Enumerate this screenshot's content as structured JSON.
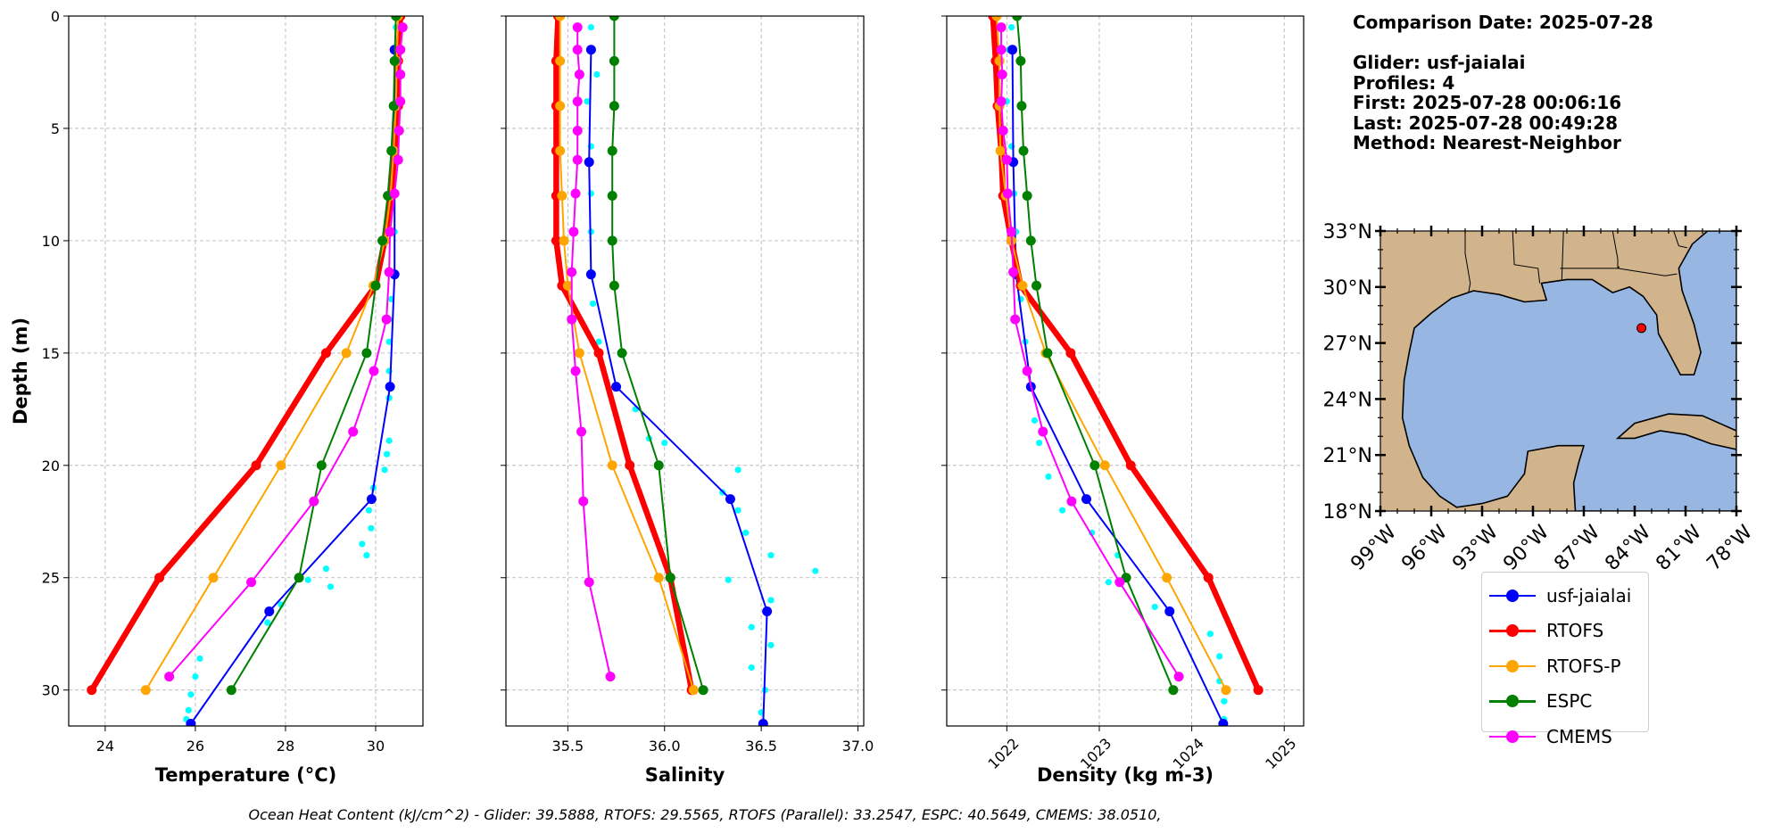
{
  "info": {
    "comparison_date": "Comparison Date: 2025-07-28",
    "glider": "Glider: usf-jaialai",
    "profiles": "Profiles: 4",
    "first": "First: 2025-07-28 00:06:16",
    "last": "Last: 2025-07-28 00:49:28",
    "method": "Method: Nearest-Neighbor"
  },
  "footer": "Ocean Heat Content (kJ/cm^2) - Glider: 39.5888,  RTOFS: 29.5565,  RTOFS (Parallel): 33.2547,  ESPC: 40.5649,  CMEMS: 38.0510,",
  "legend": [
    {
      "label": "usf-jaialai",
      "color": "#0000ff"
    },
    {
      "label": "RTOFS",
      "color": "#ff0000"
    },
    {
      "label": "RTOFS-P",
      "color": "#ffa500"
    },
    {
      "label": "ESPC",
      "color": "#008000"
    },
    {
      "label": "CMEMS",
      "color": "#ff00ff"
    }
  ],
  "chart_data": [
    {
      "type": "line",
      "title": "",
      "xlabel": "Temperature (°C)",
      "ylabel": "Depth (m)",
      "xlim": [
        23.19,
        31.05
      ],
      "ylim": [
        31.6,
        0
      ],
      "xticks": [
        24,
        26,
        28,
        30
      ],
      "xtick_labels": [
        "24",
        "26",
        "28",
        "30"
      ],
      "yticks": [
        0,
        5,
        10,
        15,
        20,
        25,
        30
      ],
      "ytick_labels": [
        "0",
        "5",
        "10",
        "15",
        "20",
        "25",
        "30"
      ],
      "grid": true,
      "raw": {
        "name": "usf-jaialai raw",
        "color": "#00ffff",
        "depth": [
          0.5,
          1.5,
          2.6,
          3.8,
          5.1,
          6.4,
          7.9,
          9.6,
          11.4,
          12.6,
          13.5,
          14.5,
          15.8,
          17.0,
          18.9,
          19.5,
          20.2,
          21.0,
          22.0,
          22.8,
          23.5,
          24.0,
          24.6,
          25.1,
          25.4,
          26.2,
          27.0,
          28.6,
          29.4,
          30.2,
          30.9,
          31.3
        ],
        "values": [
          30.45,
          30.5,
          30.5,
          30.45,
          30.45,
          30.42,
          30.45,
          30.42,
          30.4,
          30.35,
          30.3,
          30.3,
          30.3,
          30.3,
          30.3,
          30.25,
          30.2,
          29.95,
          29.85,
          29.9,
          29.7,
          29.8,
          28.9,
          28.5,
          29.0,
          27.9,
          27.6,
          26.1,
          26.0,
          25.9,
          25.85,
          25.8
        ]
      },
      "series": [
        {
          "name": "usf-jaialai",
          "color": "#0000ff",
          "depth": [
            1.5,
            11.5,
            16.5,
            21.5,
            26.5,
            31.5
          ],
          "values": [
            30.42,
            30.42,
            30.32,
            29.91,
            27.64,
            25.9
          ]
        },
        {
          "name": "RTOFS",
          "color": "#ff0000",
          "depth": [
            0,
            2,
            4,
            6,
            8,
            10,
            12,
            15,
            20,
            25,
            30
          ],
          "values": [
            30.55,
            30.5,
            30.5,
            30.42,
            30.35,
            30.2,
            30.0,
            28.9,
            27.35,
            25.2,
            23.7
          ]
        },
        {
          "name": "RTOFS-P",
          "color": "#ffa500",
          "depth": [
            0,
            2,
            4,
            6,
            8,
            10,
            12,
            15,
            20,
            25,
            30
          ],
          "values": [
            30.5,
            30.47,
            30.45,
            30.4,
            30.33,
            30.2,
            29.95,
            29.35,
            27.9,
            26.4,
            24.9
          ]
        },
        {
          "name": "ESPC",
          "color": "#008000",
          "depth": [
            0,
            2,
            4,
            6,
            8,
            10,
            12,
            15,
            20,
            25,
            30
          ],
          "values": [
            30.45,
            30.42,
            30.4,
            30.35,
            30.27,
            30.15,
            30.0,
            29.8,
            28.8,
            28.3,
            26.8
          ]
        },
        {
          "name": "CMEMS",
          "color": "#ff00ff",
          "depth": [
            0.5,
            1.5,
            2.6,
            3.8,
            5.1,
            6.4,
            7.9,
            9.6,
            11.4,
            13.5,
            15.8,
            18.5,
            21.6,
            25.2,
            29.4
          ],
          "values": [
            30.6,
            30.55,
            30.55,
            30.55,
            30.52,
            30.5,
            30.42,
            30.32,
            30.3,
            30.24,
            29.96,
            29.5,
            28.63,
            27.24,
            25.42
          ]
        }
      ]
    },
    {
      "type": "line",
      "title": "",
      "xlabel": "Salinity",
      "ylabel": "",
      "xlim": [
        35.18,
        37.03
      ],
      "ylim": [
        31.6,
        0
      ],
      "xticks": [
        35.5,
        36.0,
        36.5,
        37.0
      ],
      "xtick_labels": [
        "35.5",
        "36.0",
        "36.5",
        "37.0"
      ],
      "yticks": [
        0,
        5,
        10,
        15,
        20,
        25,
        30
      ],
      "grid": true,
      "raw": {
        "name": "usf-jaialai raw",
        "color": "#00ffff",
        "depth": [
          0.5,
          1.5,
          2.6,
          3.8,
          5.8,
          7.9,
          9.6,
          11.4,
          12.8,
          14.5,
          16.5,
          17.5,
          18.8,
          19.0,
          20.2,
          21.2,
          22.0,
          23.0,
          24.0,
          24.7,
          25.1,
          26.0,
          27.2,
          28.0,
          29.0,
          30.0,
          31.0
        ],
        "values": [
          35.62,
          35.63,
          35.65,
          35.6,
          35.62,
          35.62,
          35.62,
          35.62,
          35.63,
          35.66,
          35.75,
          35.85,
          35.92,
          36.0,
          36.38,
          36.3,
          36.38,
          36.42,
          36.55,
          36.78,
          36.33,
          36.55,
          36.45,
          36.55,
          36.45,
          36.52,
          36.5
        ]
      },
      "series": [
        {
          "name": "usf-jaialai",
          "color": "#0000ff",
          "depth": [
            1.5,
            6.5,
            11.5,
            16.5,
            21.5,
            26.5,
            31.5
          ],
          "values": [
            35.62,
            35.61,
            35.62,
            35.75,
            36.34,
            36.53,
            36.51
          ]
        },
        {
          "name": "RTOFS",
          "color": "#ff0000",
          "depth": [
            0,
            2,
            4,
            6,
            8,
            10,
            12,
            15,
            20,
            25,
            30
          ],
          "values": [
            35.45,
            35.44,
            35.44,
            35.44,
            35.44,
            35.44,
            35.47,
            35.66,
            35.82,
            36.03,
            36.14
          ]
        },
        {
          "name": "RTOFS-P",
          "color": "#ffa500",
          "depth": [
            0,
            2,
            4,
            6,
            8,
            10,
            12,
            15,
            20,
            25,
            30
          ],
          "values": [
            35.46,
            35.46,
            35.46,
            35.46,
            35.47,
            35.48,
            35.5,
            35.56,
            35.73,
            35.97,
            36.15
          ]
        },
        {
          "name": "ESPC",
          "color": "#008000",
          "depth": [
            0,
            2,
            4,
            6,
            8,
            10,
            12,
            15,
            20,
            25,
            30
          ],
          "values": [
            35.74,
            35.74,
            35.74,
            35.73,
            35.73,
            35.73,
            35.74,
            35.78,
            35.97,
            36.03,
            36.2
          ]
        },
        {
          "name": "CMEMS",
          "color": "#ff00ff",
          "depth": [
            0.5,
            1.5,
            2.6,
            3.8,
            5.1,
            6.4,
            7.9,
            9.6,
            11.4,
            13.5,
            15.8,
            18.5,
            21.6,
            25.2,
            29.4
          ],
          "values": [
            35.55,
            35.55,
            35.56,
            35.55,
            35.55,
            35.55,
            35.54,
            35.53,
            35.52,
            35.52,
            35.54,
            35.57,
            35.58,
            35.61,
            35.72
          ]
        }
      ]
    },
    {
      "type": "line",
      "title": "",
      "xlabel": "Density (kg m-3)",
      "ylabel": "",
      "xlim": [
        1021.35,
        1025.21
      ],
      "ylim": [
        31.6,
        0
      ],
      "xticks": [
        1022,
        1023,
        1024,
        1025
      ],
      "xtick_labels": [
        "1022",
        "1023",
        "1024",
        "1025"
      ],
      "yticks": [
        0,
        5,
        10,
        15,
        20,
        25,
        30
      ],
      "grid": true,
      "raw": {
        "name": "usf-jaialai raw",
        "color": "#00ffff",
        "depth": [
          0.5,
          1.5,
          3.8,
          5.8,
          7.9,
          9.6,
          12.6,
          14.5,
          16.5,
          18.0,
          19.0,
          20.5,
          22.0,
          23.0,
          24.0,
          25.2,
          26.3,
          27.5,
          28.5,
          29.6,
          30.5,
          31.3
        ],
        "values": [
          1022.05,
          1022.02,
          1022.0,
          1022.05,
          1022.08,
          1022.1,
          1022.15,
          1022.2,
          1022.25,
          1022.3,
          1022.35,
          1022.45,
          1022.6,
          1022.92,
          1023.2,
          1023.1,
          1023.6,
          1024.2,
          1024.3,
          1024.3,
          1024.35,
          1024.35
        ]
      },
      "series": [
        {
          "name": "usf-jaialai",
          "color": "#0000ff",
          "depth": [
            1.5,
            6.5,
            11.5,
            16.5,
            21.5,
            26.5,
            31.5
          ],
          "values": [
            1022.06,
            1022.07,
            1022.1,
            1022.26,
            1022.86,
            1023.76,
            1024.34
          ]
        },
        {
          "name": "RTOFS",
          "color": "#ff0000",
          "depth": [
            0,
            2,
            4,
            6,
            8,
            10,
            12,
            15,
            20,
            25,
            30
          ],
          "values": [
            1021.85,
            1021.88,
            1021.9,
            1021.94,
            1021.96,
            1022.05,
            1022.15,
            1022.69,
            1023.34,
            1024.18,
            1024.72
          ]
        },
        {
          "name": "RTOFS-P",
          "color": "#ffa500",
          "depth": [
            0,
            2,
            4,
            6,
            8,
            10,
            12,
            15,
            20,
            25,
            30
          ],
          "values": [
            1021.89,
            1021.92,
            1021.92,
            1021.93,
            1021.99,
            1022.05,
            1022.17,
            1022.42,
            1023.06,
            1023.73,
            1024.37
          ]
        },
        {
          "name": "ESPC",
          "color": "#008000",
          "depth": [
            0,
            2,
            4,
            6,
            8,
            10,
            12,
            15,
            20,
            25,
            30
          ],
          "values": [
            1022.11,
            1022.15,
            1022.16,
            1022.18,
            1022.22,
            1022.26,
            1022.32,
            1022.44,
            1022.95,
            1023.29,
            1023.8
          ]
        },
        {
          "name": "CMEMS",
          "color": "#ff00ff",
          "depth": [
            0.5,
            1.5,
            2.6,
            3.8,
            5.1,
            6.4,
            7.9,
            9.6,
            11.4,
            13.5,
            15.8,
            18.5,
            21.6,
            25.2,
            29.4
          ],
          "values": [
            1021.94,
            1021.94,
            1021.95,
            1021.94,
            1021.96,
            1022.0,
            1022.01,
            1022.05,
            1022.07,
            1022.09,
            1022.22,
            1022.39,
            1022.7,
            1023.22,
            1023.86
          ]
        }
      ]
    }
  ],
  "map": {
    "lon_range": [
      -99,
      -78
    ],
    "lat_range": [
      18,
      33
    ],
    "lon_ticks": [
      -99,
      -96,
      -93,
      -90,
      -87,
      -84,
      -81,
      -78
    ],
    "lon_labels": [
      "99°W",
      "96°W",
      "93°W",
      "90°W",
      "87°W",
      "84°W",
      "81°W",
      "78°W"
    ],
    "lat_ticks": [
      33,
      30,
      27,
      24,
      21,
      18
    ],
    "lat_labels": [
      "33°N",
      "30°N",
      "27°N",
      "24°N",
      "21°N",
      "18°N"
    ],
    "land_color": "#d2b48c",
    "water_color": "#97b6e1",
    "glider_position": {
      "lon": -83.6,
      "lat": 27.8,
      "color": "#ff0000"
    },
    "water_polygon": [
      [
        -79.7,
        33
      ],
      [
        -78,
        33
      ],
      [
        -78,
        18
      ],
      [
        -87.5,
        18
      ],
      [
        -87.6,
        19.5
      ],
      [
        -87.3,
        20.6
      ],
      [
        -87,
        21.5
      ],
      [
        -88.5,
        21.5
      ],
      [
        -90.3,
        21.2
      ],
      [
        -90.5,
        20
      ],
      [
        -91.5,
        18.8
      ],
      [
        -93,
        18.4
      ],
      [
        -94.5,
        18.2
      ],
      [
        -95.5,
        18.8
      ],
      [
        -96.5,
        19.8
      ],
      [
        -97.3,
        21.5
      ],
      [
        -97.7,
        23
      ],
      [
        -97.6,
        25
      ],
      [
        -97.3,
        26.5
      ],
      [
        -97,
        27.8
      ],
      [
        -96,
        28.6
      ],
      [
        -94.8,
        29.4
      ],
      [
        -93.5,
        29.8
      ],
      [
        -92,
        29.6
      ],
      [
        -90.5,
        29.2
      ],
      [
        -89.2,
        29.3
      ],
      [
        -89.5,
        30.2
      ],
      [
        -88,
        30.4
      ],
      [
        -86.5,
        30.4
      ],
      [
        -85.3,
        29.7
      ],
      [
        -84.3,
        30.0
      ],
      [
        -83.5,
        29.5
      ],
      [
        -82.7,
        28.5
      ],
      [
        -82.6,
        27.5
      ],
      [
        -82,
        26.5
      ],
      [
        -81.3,
        25.3
      ],
      [
        -80.5,
        25.3
      ],
      [
        -80.1,
        26.5
      ],
      [
        -80.5,
        28
      ],
      [
        -81.2,
        29.8
      ],
      [
        -81.4,
        31
      ],
      [
        -80.6,
        32.3
      ]
    ],
    "cuba_polygon": [
      [
        -85,
        21.9
      ],
      [
        -84,
        22.7
      ],
      [
        -82,
        23.2
      ],
      [
        -80,
        23.1
      ],
      [
        -78,
        22.3
      ],
      [
        -78,
        21.3
      ],
      [
        -79.5,
        21.6
      ],
      [
        -81,
        22.1
      ],
      [
        -82.5,
        22.3
      ],
      [
        -84,
        21.9
      ]
    ],
    "borders": [
      [
        [
          -94,
          33
        ],
        [
          -94,
          31.8
        ],
        [
          -93.7,
          30.2
        ],
        [
          -93.8,
          29.7
        ]
      ],
      [
        [
          -91.2,
          33
        ],
        [
          -91.1,
          31.2
        ],
        [
          -89.7,
          31
        ],
        [
          -89.6,
          30.2
        ]
      ],
      [
        [
          -88.2,
          33
        ],
        [
          -88.3,
          30.4
        ]
      ],
      [
        [
          -88.4,
          31
        ],
        [
          -87.5,
          31
        ],
        [
          -85,
          31
        ],
        [
          -84.9,
          31.1
        ]
      ],
      [
        [
          -85.3,
          33
        ],
        [
          -85,
          31.5
        ],
        [
          -85,
          31
        ]
      ],
      [
        [
          -85,
          31
        ],
        [
          -82.2,
          30.6
        ],
        [
          -81.5,
          30.7
        ]
      ],
      [
        [
          -81.7,
          33
        ],
        [
          -81.4,
          32.2
        ],
        [
          -80.9,
          32.1
        ]
      ]
    ]
  }
}
